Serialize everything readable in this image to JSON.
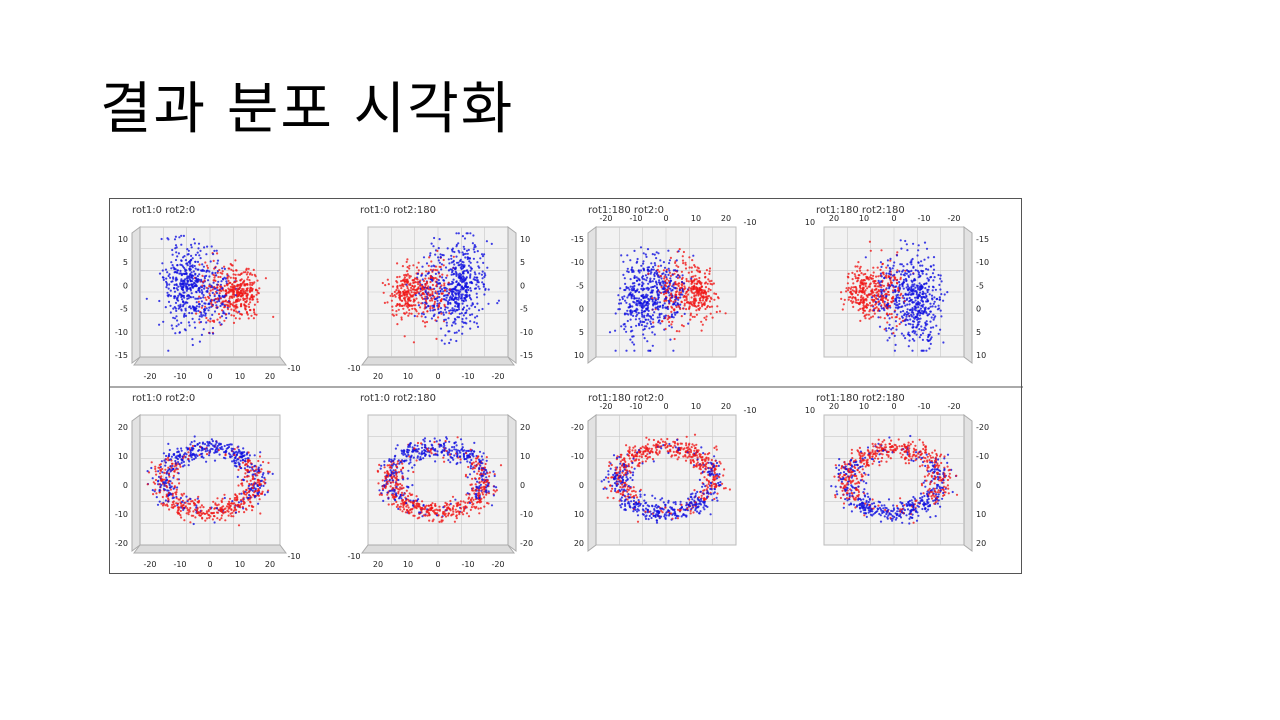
{
  "slide": {
    "title": "결과 분포 시각화"
  },
  "colors": {
    "series_a": "#1010e0",
    "series_b": "#f01818",
    "pane": "#f2f2f2",
    "grid": "#c8c8c8"
  },
  "chart_data": [
    {
      "type": "scatter",
      "title": "rot1:0    rot2:0",
      "x_ticks": [
        "-20",
        "-10",
        "0",
        "10",
        "20"
      ],
      "y_ticks": [
        "10",
        "5",
        "0",
        "-5",
        "-10",
        "-15"
      ],
      "y_side": "left",
      "x_top": false,
      "corner_label": "-10",
      "shape": "blobs",
      "mirror": false,
      "flipY": false
    },
    {
      "type": "scatter",
      "title": "rot1:0    rot2:180",
      "x_ticks": [
        "20",
        "10",
        "0",
        "-10",
        "-20"
      ],
      "y_ticks": [
        "10",
        "5",
        "0",
        "-5",
        "-10",
        "-15"
      ],
      "y_side": "right",
      "x_top": false,
      "corner_label": "-10",
      "shape": "blobs",
      "mirror": true,
      "flipY": false
    },
    {
      "type": "scatter",
      "title": "rot1:180    rot2:0",
      "x_ticks": [
        "-20",
        "-10",
        "0",
        "10",
        "20"
      ],
      "y_ticks": [
        "-15",
        "-10",
        "-5",
        "0",
        "5",
        "10"
      ],
      "y_side": "left",
      "x_top": true,
      "corner_label": "-10",
      "shape": "blobs",
      "mirror": false,
      "flipY": true
    },
    {
      "type": "scatter",
      "title": "rot1:180    rot2:180",
      "x_ticks": [
        "20",
        "10",
        "0",
        "-10",
        "-20"
      ],
      "y_ticks": [
        "-15",
        "-10",
        "-5",
        "0",
        "5",
        "10"
      ],
      "y_side": "right",
      "x_top": true,
      "corner_label": "10",
      "shape": "blobs",
      "mirror": true,
      "flipY": true
    },
    {
      "type": "scatter",
      "title": "rot1:0    rot2:0",
      "x_ticks": [
        "-20",
        "-10",
        "0",
        "10",
        "20"
      ],
      "y_ticks": [
        "20",
        "10",
        "0",
        "-10",
        "-20"
      ],
      "y_side": "left",
      "x_top": false,
      "corner_label": "-10",
      "shape": "ring",
      "mirror": false,
      "flipY": false
    },
    {
      "type": "scatter",
      "title": "rot1:0    rot2:180",
      "x_ticks": [
        "20",
        "10",
        "0",
        "-10",
        "-20"
      ],
      "y_ticks": [
        "20",
        "10",
        "0",
        "-10",
        "-20"
      ],
      "y_side": "right",
      "x_top": false,
      "corner_label": "-10",
      "shape": "ring",
      "mirror": true,
      "flipY": false
    },
    {
      "type": "scatter",
      "title": "rot1:180    rot2:0",
      "x_ticks": [
        "-20",
        "-10",
        "0",
        "10",
        "20"
      ],
      "y_ticks": [
        "-20",
        "-10",
        "0",
        "10",
        "20"
      ],
      "y_side": "left",
      "x_top": true,
      "corner_label": "-10",
      "shape": "ring",
      "mirror": false,
      "flipY": true
    },
    {
      "type": "scatter",
      "title": "rot1:180    rot2:180",
      "x_ticks": [
        "20",
        "10",
        "0",
        "-10",
        "-20"
      ],
      "y_ticks": [
        "-20",
        "-10",
        "0",
        "10",
        "20"
      ],
      "y_side": "right",
      "x_top": true,
      "corner_label": "10",
      "shape": "ring",
      "mirror": true,
      "flipY": true
    }
  ]
}
